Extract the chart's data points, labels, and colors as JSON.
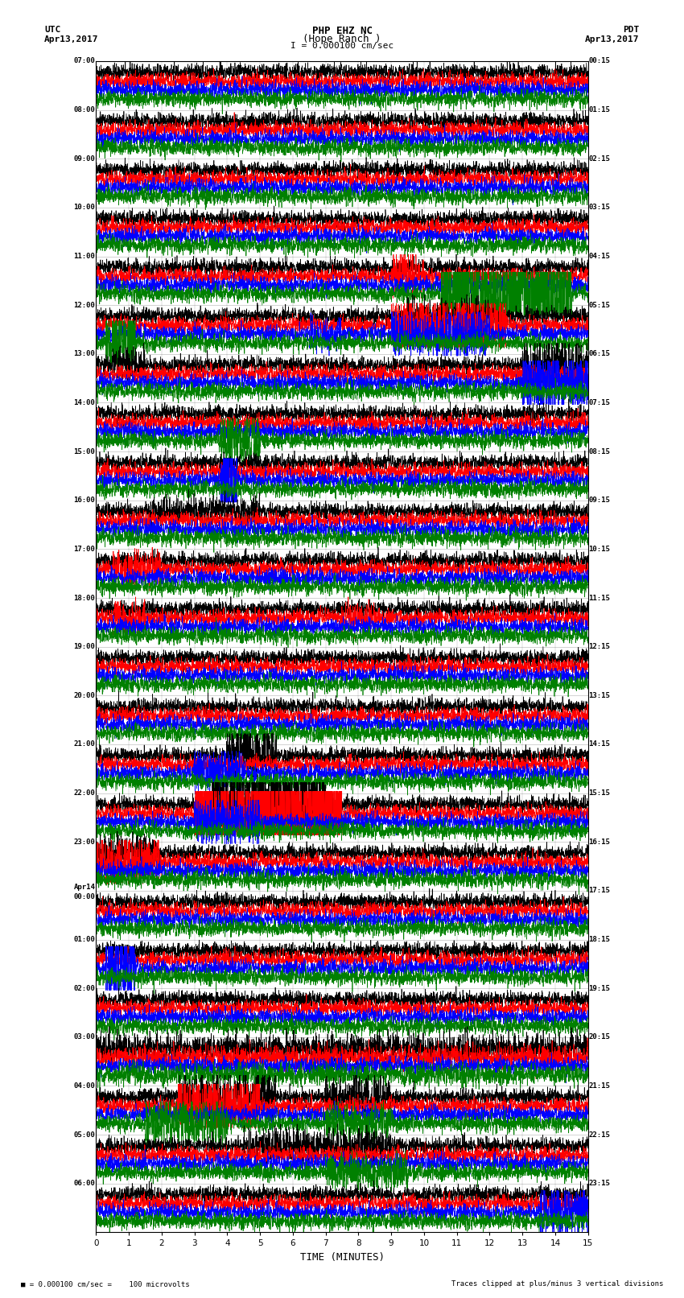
{
  "title_line1": "PHP EHZ NC",
  "title_line2": "(Hope Ranch )",
  "scale_label": "I = 0.000100 cm/sec",
  "utc_label": "UTC",
  "utc_date": "Apr13,2017",
  "pdt_label": "PDT",
  "pdt_date": "Apr13,2017",
  "footer_left": "= 0.000100 cm/sec =    100 microvolts",
  "footer_right": "Traces clipped at plus/minus 3 vertical divisions",
  "xlabel": "TIME (MINUTES)",
  "left_times": [
    "07:00",
    "08:00",
    "09:00",
    "10:00",
    "11:00",
    "12:00",
    "13:00",
    "14:00",
    "15:00",
    "16:00",
    "17:00",
    "18:00",
    "19:00",
    "20:00",
    "21:00",
    "22:00",
    "23:00",
    "Apr14\n00:00",
    "01:00",
    "02:00",
    "03:00",
    "04:00",
    "05:00",
    "06:00"
  ],
  "right_times": [
    "00:15",
    "01:15",
    "02:15",
    "03:15",
    "04:15",
    "05:15",
    "06:15",
    "07:15",
    "08:15",
    "09:15",
    "10:15",
    "11:15",
    "12:15",
    "13:15",
    "14:15",
    "15:15",
    "16:15",
    "17:15",
    "18:15",
    "19:15",
    "20:15",
    "21:15",
    "22:15",
    "23:15"
  ],
  "num_rows": 24,
  "trace_colors": [
    "black",
    "red",
    "blue",
    "green"
  ],
  "bg_color": "white",
  "noise_seed": 42,
  "base_noise_amp": 0.025,
  "lw": 0.5
}
